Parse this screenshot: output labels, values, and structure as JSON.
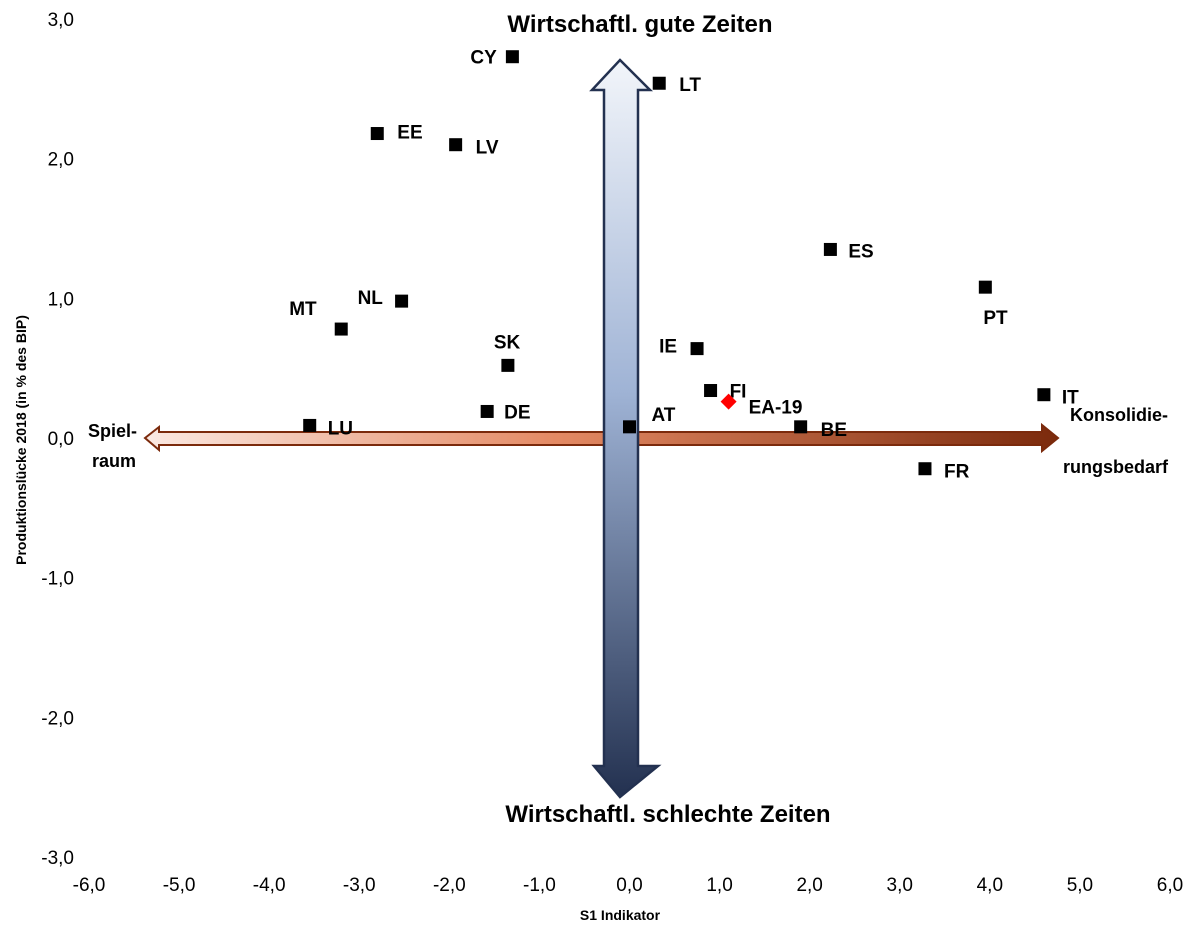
{
  "chart_data": {
    "type": "scatter",
    "xlabel": "S1 Indikator",
    "ylabel": "Produktionslücke 2018 (in % des BIP)",
    "xlim": [
      -6,
      6
    ],
    "ylim": [
      -3,
      3
    ],
    "x_ticks": [
      "-6,0",
      "-5,0",
      "-4,0",
      "-3,0",
      "-2,0",
      "-1,0",
      "0,0",
      "1,0",
      "2,0",
      "3,0",
      "4,0",
      "5,0",
      "6,0"
    ],
    "y_ticks": [
      "3,0",
      "2,0",
      "1,0",
      "0,0",
      "-1,0",
      "-2,0",
      "-3,0"
    ],
    "grid": false,
    "points": [
      {
        "label": "CY",
        "x": -1.3,
        "y": 2.73
      },
      {
        "label": "LT",
        "x": 0.33,
        "y": 2.54
      },
      {
        "label": "EE",
        "x": -2.8,
        "y": 2.18
      },
      {
        "label": "LV",
        "x": -1.93,
        "y": 2.1
      },
      {
        "label": "ES",
        "x": 2.23,
        "y": 1.35
      },
      {
        "label": "PT",
        "x": 3.95,
        "y": 1.08
      },
      {
        "label": "NL",
        "x": -2.53,
        "y": 0.98
      },
      {
        "label": "MT",
        "x": -3.2,
        "y": 0.78
      },
      {
        "label": "IE",
        "x": 0.75,
        "y": 0.64
      },
      {
        "label": "SK",
        "x": -1.35,
        "y": 0.52
      },
      {
        "label": "FI",
        "x": 0.9,
        "y": 0.34
      },
      {
        "label": "IT",
        "x": 4.6,
        "y": 0.31
      },
      {
        "label": "DE",
        "x": -1.58,
        "y": 0.19
      },
      {
        "label": "LU",
        "x": -3.55,
        "y": 0.09
      },
      {
        "label": "AT",
        "x": 0.0,
        "y": 0.08
      },
      {
        "label": "BE",
        "x": 1.9,
        "y": 0.08
      },
      {
        "label": "FR",
        "x": 3.28,
        "y": -0.22
      }
    ],
    "highlight_point": {
      "label": "EA-19",
      "x": 1.1,
      "y": 0.26,
      "color": "#FF0000"
    },
    "marker_color": "#000000",
    "annotations": {
      "top": "Wirtschaftl. gute Zeiten",
      "bottom": "Wirtschaftl. schlechte Zeiten",
      "left_line1": "Spiel-",
      "left_line2": "raum",
      "right_line1": "Konsolidie-",
      "right_line2": "rungsbedarf"
    },
    "colors": {
      "vertical_arrow_top": "#f2f5fa",
      "vertical_arrow_bottom": "#233150",
      "horizontal_arrow_left": "#fae6df",
      "horizontal_arrow_right": "#7b2a0c"
    }
  }
}
